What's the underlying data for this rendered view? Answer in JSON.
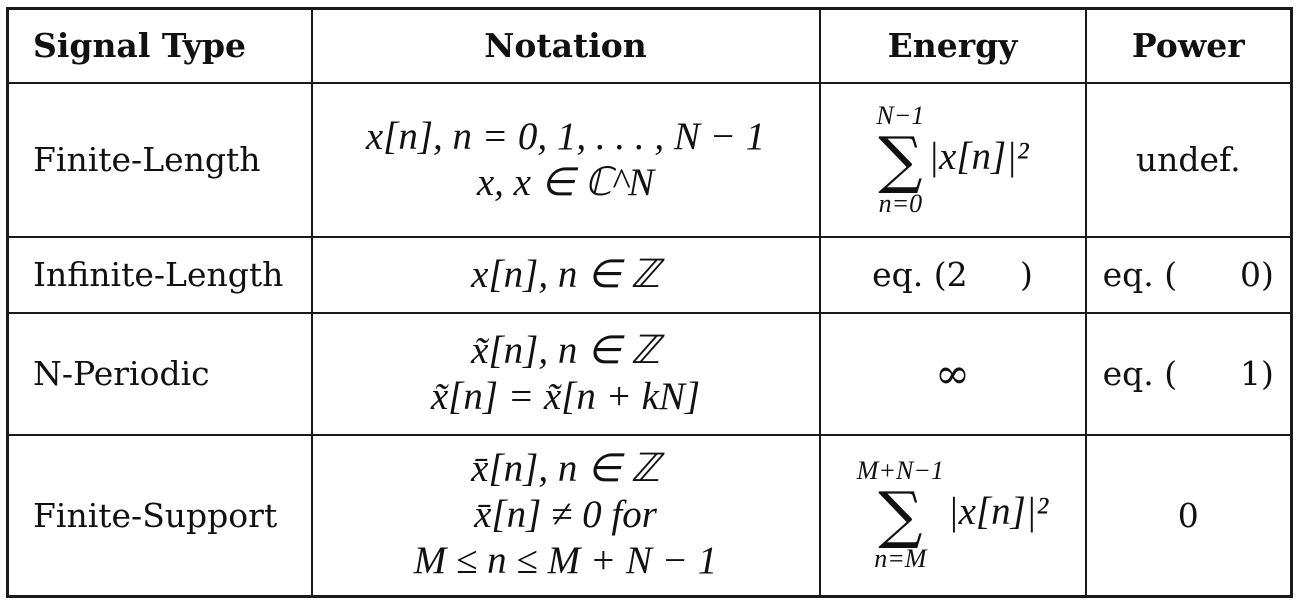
{
  "headers": [
    "Signal Type",
    "Notation",
    "Energy",
    "Power"
  ],
  "rows": [
    {
      "type": "Finite-Length",
      "notation": [
        "x[n],    n = 0, 1, . . . , N − 1",
        "x,    x ∈ ℂ^N"
      ],
      "energy": {
        "upper": "N−1",
        "lower": "n=0",
        "expr": "|x[n]|²"
      },
      "power": "undef."
    },
    {
      "type": "Infinite-Length",
      "notation": [
        "x[n],    n ∈ ℤ"
      ],
      "energy": "eq. (2     )",
      "power": "eq. (      0)"
    },
    {
      "type": "N-Periodic",
      "notation": [
        "x̃[n],    n ∈ ℤ",
        "x̃[n] = x̃[n + kN]"
      ],
      "energy": "∞",
      "power": "eq. (      1)"
    },
    {
      "type": "Finite-Support",
      "notation": [
        "x̄[n],    n ∈ ℤ",
        "x̄[n] ≠ 0 for",
        "M ≤ n ≤ M + N − 1"
      ],
      "energy": {
        "upper": "M+N−1",
        "lower": "n=M",
        "expr": "|x[n]|²"
      },
      "power": "0"
    }
  ]
}
